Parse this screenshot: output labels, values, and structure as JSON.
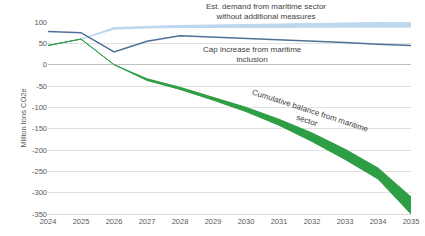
{
  "chart_data": {
    "type": "line",
    "y_label": "Million tons CO2e",
    "x": [
      2024,
      2025,
      2026,
      2027,
      2028,
      2029,
      2030,
      2031,
      2032,
      2033,
      2034,
      2035
    ],
    "xlim": [
      2024,
      2035
    ],
    "xticks": [
      2024,
      2025,
      2026,
      2027,
      2028,
      2029,
      2030,
      2031,
      2032,
      2033,
      2034,
      2035
    ],
    "ylim": [
      -350,
      100
    ],
    "yticks": [
      -350,
      -300,
      -250,
      -200,
      -150,
      -100,
      -50,
      0,
      50,
      100
    ],
    "grid": true,
    "series": [
      {
        "name": "Est. demand from maritime sector without additional measures",
        "type": "band",
        "color": "#bdd7ee",
        "low": [
          45,
          60,
          83,
          86,
          87,
          87,
          87,
          87,
          88,
          88,
          88,
          88
        ],
        "high": [
          45,
          60,
          87,
          90,
          92,
          93,
          94,
          95,
          96,
          97,
          98,
          100
        ]
      },
      {
        "name": "Cap increase from maritime inclusion",
        "type": "line",
        "color": "#4f6f94",
        "values": [
          78,
          75,
          30,
          55,
          68,
          65,
          62,
          58,
          55,
          52,
          48,
          45
        ]
      },
      {
        "name": "Cumulative balance from maritime sector",
        "type": "band",
        "color": "#2e9e44",
        "low": [
          45,
          60,
          0,
          -37,
          -58,
          -83,
          -110,
          -142,
          -180,
          -222,
          -268,
          -350
        ],
        "high": [
          45,
          60,
          0,
          -33,
          -53,
          -77,
          -100,
          -128,
          -160,
          -198,
          -242,
          -310
        ]
      }
    ]
  }
}
